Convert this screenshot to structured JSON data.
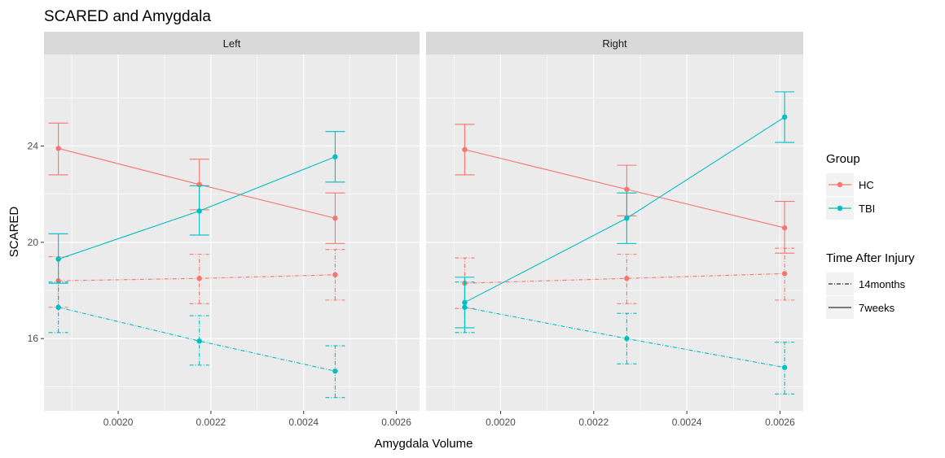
{
  "chart_data": {
    "type": "line",
    "title": "SCARED and Amygdala",
    "xlabel": "Amygdala Volume",
    "ylabel": "SCARED",
    "xlim": [
      0.00184,
      0.00265
    ],
    "ylim": [
      13.0,
      27.8
    ],
    "x_ticks": [
      0.002,
      0.0022,
      0.0024,
      0.0026
    ],
    "x_tick_labels": [
      "0.0020",
      "0.0022",
      "0.0024",
      "0.0026"
    ],
    "y_ticks": [
      16,
      20,
      24
    ],
    "y_tick_labels": [
      "16",
      "20",
      "24"
    ],
    "grid": true,
    "legend_position": "right",
    "colors": {
      "HC": "#F8766D",
      "TBI": "#00BFC4"
    },
    "legend": {
      "group_title": "Group",
      "group_items": [
        "HC",
        "TBI"
      ],
      "time_title": "Time After Injury",
      "time_items": [
        "14months",
        "7weeks"
      ]
    },
    "panels": [
      {
        "label": "Left",
        "series": [
          {
            "group": "HC",
            "time": "7weeks",
            "points": [
              {
                "x": 0.001871,
                "y": 23.9,
                "lo": 22.8,
                "hi": 24.95
              },
              {
                "x": 0.002175,
                "y": 22.4,
                "lo": 21.35,
                "hi": 23.45
              },
              {
                "x": 0.002468,
                "y": 21.0,
                "lo": 19.95,
                "hi": 22.05
              }
            ]
          },
          {
            "group": "HC",
            "time": "14months",
            "points": [
              {
                "x": 0.001871,
                "y": 18.4,
                "lo": 17.3,
                "hi": 19.4
              },
              {
                "x": 0.002175,
                "y": 18.5,
                "lo": 17.45,
                "hi": 19.5
              },
              {
                "x": 0.002468,
                "y": 18.65,
                "lo": 17.6,
                "hi": 19.7
              }
            ]
          },
          {
            "group": "TBI",
            "time": "7weeks",
            "points": [
              {
                "x": 0.001871,
                "y": 19.3,
                "lo": 18.3,
                "hi": 20.35
              },
              {
                "x": 0.002175,
                "y": 21.3,
                "lo": 20.3,
                "hi": 22.35
              },
              {
                "x": 0.002468,
                "y": 23.55,
                "lo": 22.5,
                "hi": 24.6
              }
            ]
          },
          {
            "group": "TBI",
            "time": "14months",
            "points": [
              {
                "x": 0.001871,
                "y": 17.3,
                "lo": 16.25,
                "hi": 18.35
              },
              {
                "x": 0.002175,
                "y": 15.9,
                "lo": 14.9,
                "hi": 16.95
              },
              {
                "x": 0.002468,
                "y": 14.65,
                "lo": 13.55,
                "hi": 15.7
              }
            ]
          }
        ]
      },
      {
        "label": "Right",
        "series": [
          {
            "group": "HC",
            "time": "7weeks",
            "points": [
              {
                "x": 0.001923,
                "y": 23.85,
                "lo": 22.8,
                "hi": 24.9
              },
              {
                "x": 0.002271,
                "y": 22.2,
                "lo": 21.1,
                "hi": 23.2
              },
              {
                "x": 0.00261,
                "y": 20.6,
                "lo": 19.55,
                "hi": 21.7
              }
            ]
          },
          {
            "group": "HC",
            "time": "14months",
            "points": [
              {
                "x": 0.001923,
                "y": 18.3,
                "lo": 17.25,
                "hi": 19.35
              },
              {
                "x": 0.002271,
                "y": 18.5,
                "lo": 17.45,
                "hi": 19.5
              },
              {
                "x": 0.00261,
                "y": 18.7,
                "lo": 17.6,
                "hi": 19.75
              }
            ]
          },
          {
            "group": "TBI",
            "time": "7weeks",
            "points": [
              {
                "x": 0.001923,
                "y": 17.5,
                "lo": 16.45,
                "hi": 18.55
              },
              {
                "x": 0.002271,
                "y": 21.0,
                "lo": 19.95,
                "hi": 22.05
              },
              {
                "x": 0.00261,
                "y": 25.2,
                "lo": 24.15,
                "hi": 26.25
              }
            ]
          },
          {
            "group": "TBI",
            "time": "14months",
            "points": [
              {
                "x": 0.001923,
                "y": 17.3,
                "lo": 16.25,
                "hi": 18.35
              },
              {
                "x": 0.002271,
                "y": 16.0,
                "lo": 14.95,
                "hi": 17.05
              },
              {
                "x": 0.00261,
                "y": 14.8,
                "lo": 13.7,
                "hi": 15.85
              }
            ]
          }
        ]
      }
    ]
  }
}
